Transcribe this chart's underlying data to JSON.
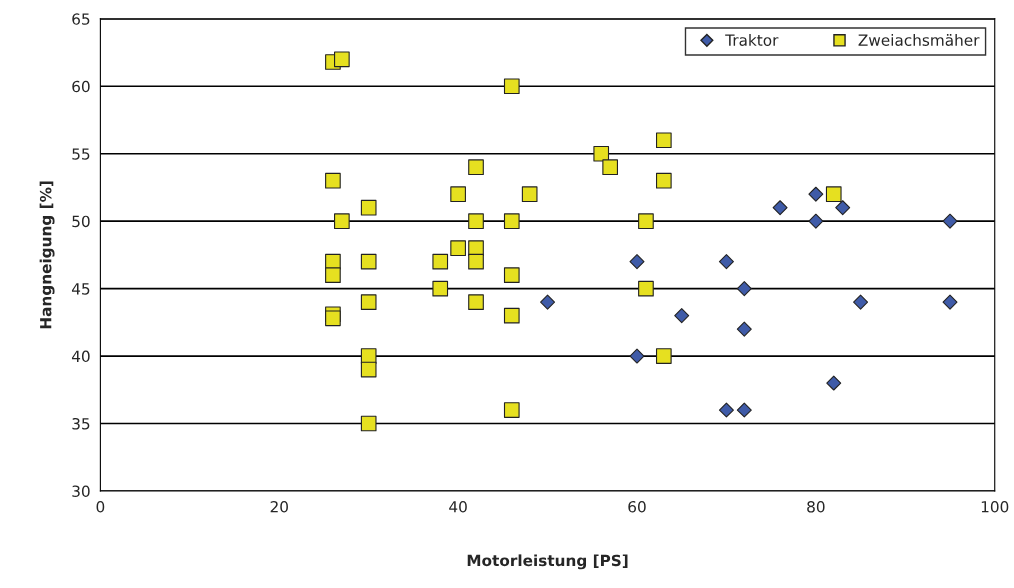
{
  "chart_data": {
    "type": "scatter",
    "xlabel": "Motorleistung [PS]",
    "ylabel": "Hangneigung [%]",
    "xlim": [
      0,
      100
    ],
    "xticks": [
      0,
      20,
      40,
      60,
      80,
      100
    ],
    "ylim": [
      30,
      65
    ],
    "yticks": [
      30,
      35,
      40,
      45,
      50,
      55,
      60,
      65
    ],
    "grid": "y",
    "legend": "top right",
    "series": [
      {
        "name": "Traktor",
        "color": "#3f5ba8",
        "marker": "diamond",
        "x": [
          50,
          60,
          60,
          65,
          70,
          70,
          72,
          72,
          72,
          76,
          80,
          80,
          82,
          83,
          85,
          95,
          95
        ],
        "values": [
          44,
          47,
          40,
          43,
          47,
          36,
          45,
          42,
          36,
          51,
          52,
          50,
          38,
          51,
          44,
          50,
          44
        ]
      },
      {
        "name": "Zweiachsmäher",
        "color": "#e6e020",
        "marker": "square",
        "x": [
          26,
          27,
          46,
          26,
          30,
          27,
          26,
          26,
          26,
          26,
          30,
          30,
          30,
          30,
          30,
          38,
          38,
          40,
          40,
          42,
          42,
          42,
          42,
          42,
          46,
          46,
          46,
          46,
          48,
          56,
          57,
          61,
          61,
          63,
          63,
          63,
          82
        ],
        "values": [
          61.8,
          62,
          60,
          53,
          51,
          50,
          47,
          46,
          43.1,
          42.8,
          47,
          44,
          40,
          39,
          35,
          47,
          45,
          52,
          48,
          54,
          50,
          48,
          47,
          44,
          50,
          46,
          43,
          36,
          52,
          55,
          54,
          50,
          45,
          56,
          53,
          40,
          52
        ]
      }
    ]
  }
}
